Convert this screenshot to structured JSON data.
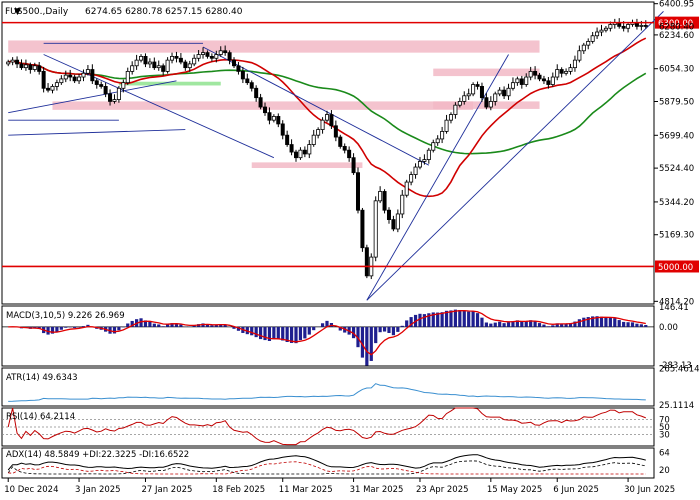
{
  "header": {
    "symbol_label": "FUS500.,Daily",
    "ohlc_label": "6274.65 6280.78 6257.15 6280.40",
    "marker": "▼"
  },
  "colors": {
    "background": "#ffffff",
    "bull_candle": "#000000",
    "bear_candle": "#000000",
    "zone": "#f2b8c6",
    "green_zone": "#8fe38f",
    "ma_red": "#d00000",
    "ma_green": "#1a8a1a",
    "trend_blue": "#1f2f9a",
    "level_red": "#e00000",
    "macd_hist": "#1f1f8f",
    "macd_signal": "#e00000",
    "atr_line": "#3a8fd0",
    "rsi_line": "#c00000",
    "adx_line": "#000000",
    "di_plus": "#000000",
    "di_minus": "#c00000",
    "level_label_bg": "#e00000",
    "level_label_text": "#ffffff"
  },
  "chart_data": [
    {
      "type": "candlestick",
      "title": "FUS500.,Daily",
      "y_ticks": [
        "6400.95",
        "6300.00",
        "6234.60",
        "6054.30",
        "5879.50",
        "5699.40",
        "5524.40",
        "5344.20",
        "5169.30",
        "5000.00",
        "4814.20"
      ],
      "y_range": [
        4800,
        6410
      ],
      "x_ticks": [
        "10 Dec 2024",
        "3 Jan 2025",
        "27 Jan 2025",
        "18 Feb 2025",
        "11 Mar 2025",
        "31 Mar 2025",
        "23 Apr 2025",
        "15 May 2025",
        "6 Jun 2025",
        "30 Jun 2025"
      ],
      "last_price_label": "6280.40",
      "levels": [
        {
          "label": "6300.00",
          "value": 6300
        },
        {
          "label": "5000.00",
          "value": 5000
        }
      ],
      "closes": [
        6090,
        6100,
        6080,
        6060,
        6075,
        6050,
        6070,
        6040,
        5950,
        5940,
        5960,
        5980,
        6000,
        6020,
        6010,
        5990,
        6010,
        6030,
        6050,
        5990,
        5970,
        5960,
        5920,
        5880,
        5890,
        5950,
        5980,
        6040,
        6070,
        6100,
        6120,
        6080,
        6090,
        6060,
        6070,
        6040,
        6100,
        6120,
        6110,
        6090,
        6060,
        6080,
        6110,
        6130,
        6140,
        6120,
        6110,
        6130,
        6150,
        6140,
        6100,
        6070,
        6040,
        6000,
        5980,
        5950,
        5900,
        5850,
        5820,
        5780,
        5800,
        5760,
        5700,
        5650,
        5610,
        5580,
        5620,
        5600,
        5650,
        5700,
        5730,
        5780,
        5810,
        5750,
        5690,
        5640,
        5620,
        5580,
        5500,
        5300,
        5100,
        4950,
        5050,
        5350,
        5400,
        5300,
        5250,
        5200,
        5280,
        5380,
        5450,
        5490,
        5530,
        5560,
        5570,
        5620,
        5660,
        5680,
        5720,
        5780,
        5810,
        5860,
        5880,
        5910,
        5920,
        5970,
        5960,
        5900,
        5850,
        5880,
        5920,
        5940,
        5910,
        5950,
        5980,
        6000,
        5970,
        6010,
        6040,
        6020,
        6000,
        5990,
        5970,
        6010,
        6050,
        6030,
        6040,
        6060,
        6100,
        6150,
        6180,
        6200,
        6230,
        6250,
        6260,
        6270,
        6290,
        6300,
        6280,
        6270,
        6290,
        6300,
        6280,
        6285,
        6280.4
      ]
    },
    {
      "type": "line",
      "title": "MACD(3,10,5) 9.226 26.969",
      "y_ticks": [
        "146.41",
        "0.00",
        "-283.13"
      ],
      "last_label": "9.226",
      "y_range": [
        -290,
        155
      ]
    },
    {
      "type": "line",
      "title": "ATR(14) 49.6343",
      "y_ticks": [
        "265.4614",
        "25.1114"
      ],
      "y_range": [
        20,
        270
      ]
    },
    {
      "type": "line",
      "title": "RSI(14) 64.2114",
      "y_ticks": [
        "70",
        "50",
        "30"
      ],
      "y_range": [
        0,
        100
      ]
    },
    {
      "type": "line",
      "title": "ADX(14) 48.5849 +DI:22.3225 -DI:16.6522",
      "y_ticks": [
        "64",
        "20"
      ],
      "y_range": [
        0,
        75
      ]
    }
  ]
}
